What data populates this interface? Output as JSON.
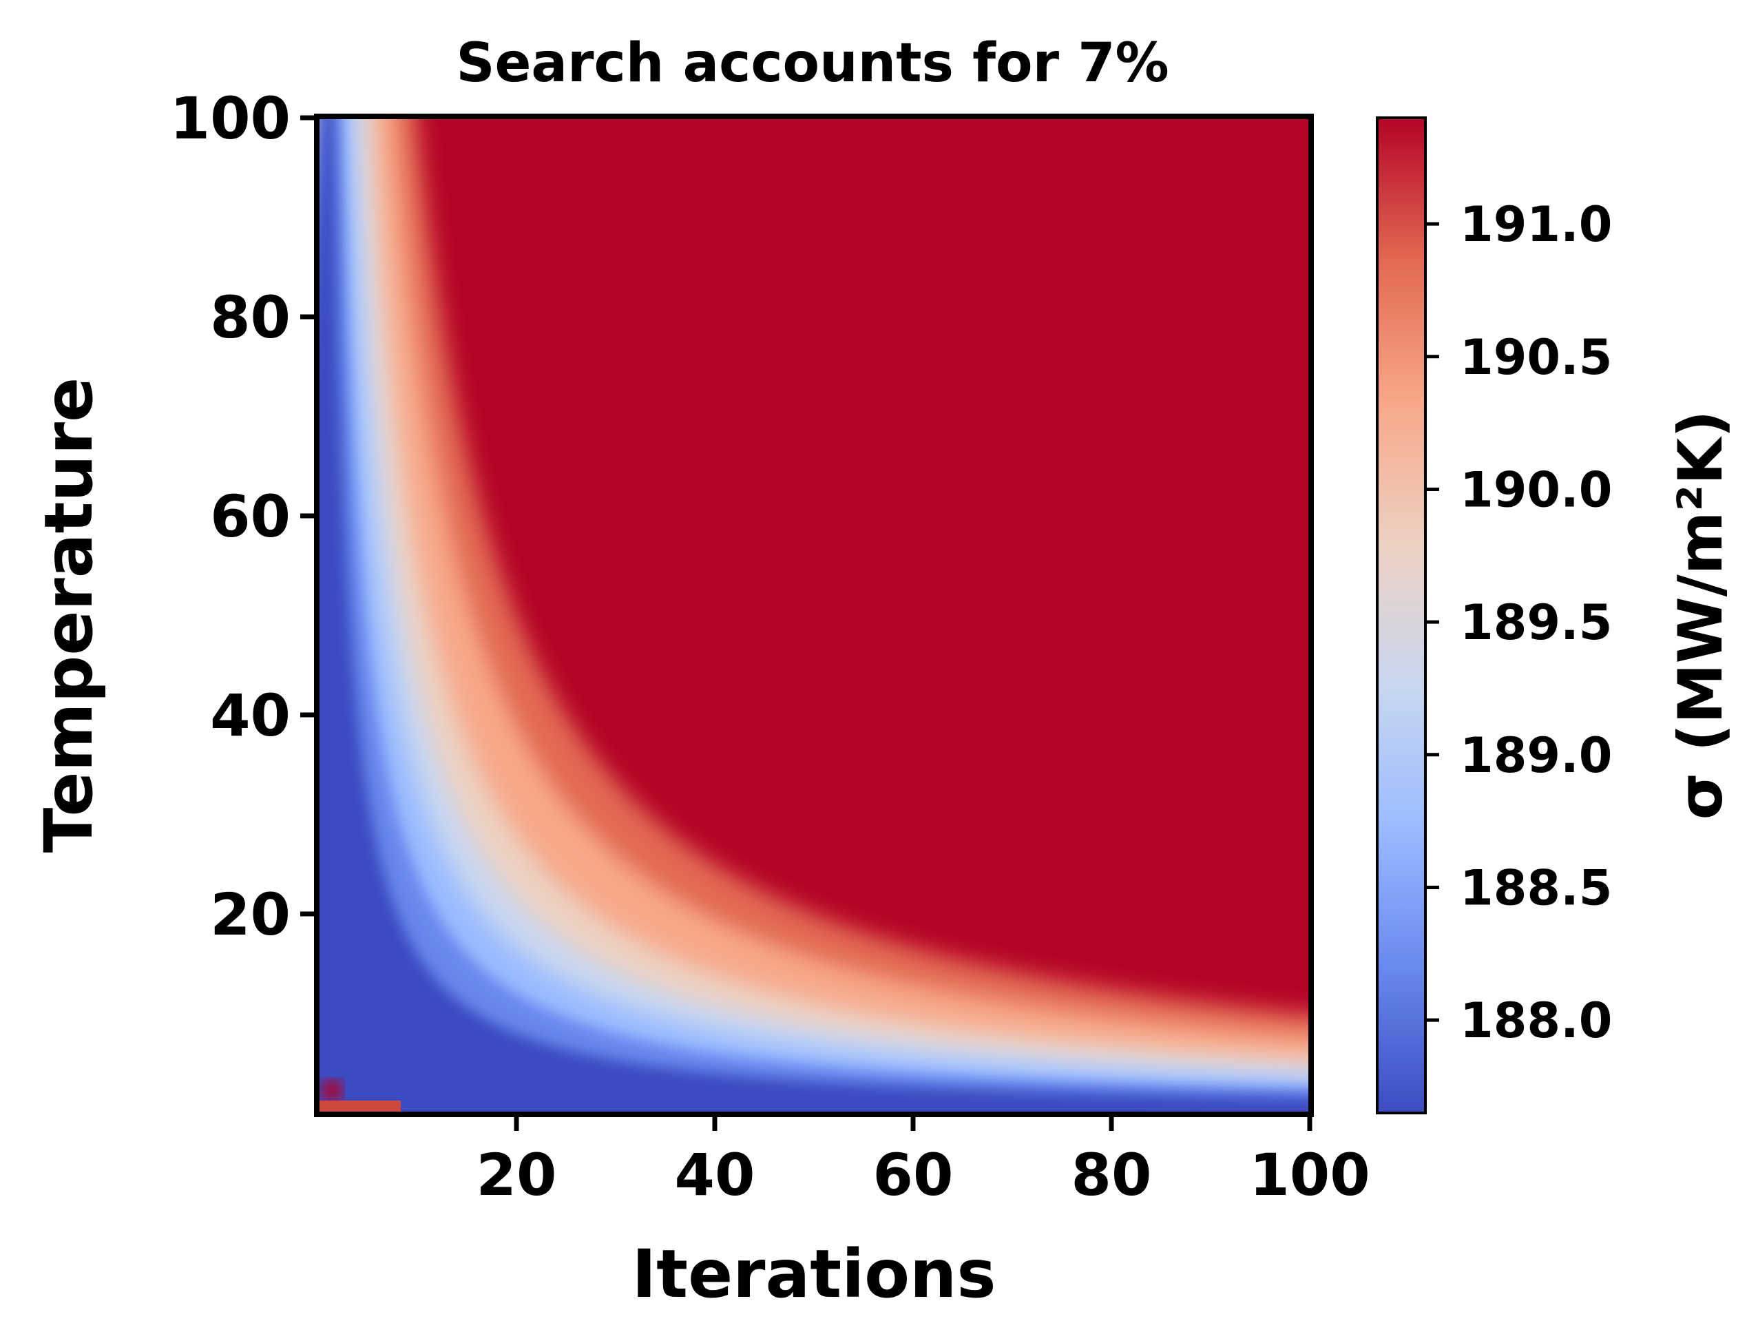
{
  "chart_data": {
    "type": "heatmap",
    "title": "Search accounts for 7%",
    "xlabel": "Iterations",
    "ylabel": "Temperature",
    "xlim": [
      0,
      100
    ],
    "ylim": [
      0,
      100
    ],
    "xticks": [
      "20",
      "40",
      "60",
      "80",
      "100"
    ],
    "yticks": [
      "20",
      "40",
      "60",
      "80",
      "100"
    ],
    "colormap": "coolwarm",
    "colorbar": {
      "label": "σ (MW/m²K)",
      "range": [
        187.65,
        191.4
      ],
      "ticks": [
        "188.0",
        "188.5",
        "189.0",
        "189.5",
        "190.0",
        "190.5",
        "191.0"
      ],
      "colors": [
        "#3b4cc0",
        "#6788ee",
        "#9abbff",
        "#c9d7f0",
        "#edd1c2",
        "#f7a889",
        "#e26952",
        "#b40426"
      ]
    },
    "description_of_surface": "Value is high (~191.4) over most of the domain; a low-value (~187.7) band hugs the left edge and bottom edge, with a transition boundary roughly following Temperature ≈ 600/Iterations.",
    "grid": false
  }
}
